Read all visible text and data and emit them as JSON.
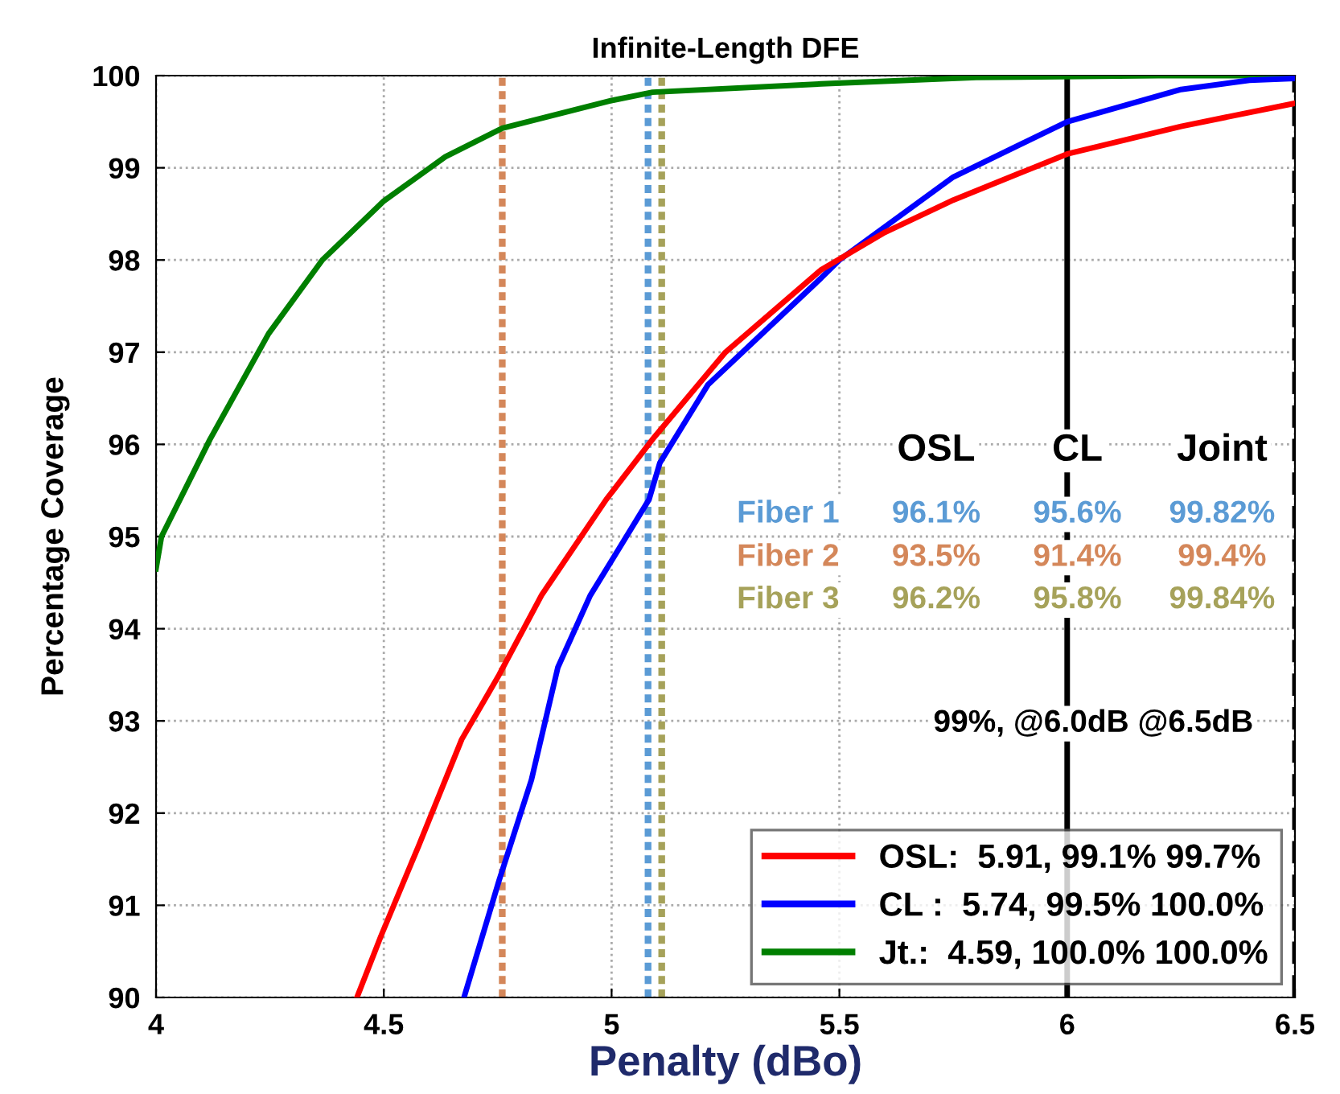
{
  "chart_data": {
    "type": "line",
    "title": "Infinite-Length DFE",
    "xlabel": "Penalty (dBo)",
    "ylabel": "Percentage Coverage",
    "xlim": [
      4,
      6.5
    ],
    "xticks": [
      4,
      4.5,
      5,
      5.5,
      6,
      6.5
    ],
    "ylim": [
      90,
      100
    ],
    "yticks": [
      90,
      91,
      92,
      93,
      94,
      95,
      96,
      97,
      98,
      99,
      100
    ],
    "grid": true,
    "legend": "bottom right",
    "line_style": "solid",
    "marker": "none",
    "series": [
      {
        "name": "OSL:  5.91, 99.1% 99.7%",
        "color": "#ff0000",
        "x": [
          4.441,
          4.494,
          4.576,
          4.671,
          4.753,
          4.847,
          4.988,
          5.094,
          5.25,
          5.459,
          5.6,
          5.75,
          5.9,
          6.0,
          6.25,
          6.5
        ],
        "values": [
          90,
          90.67,
          91.64,
          92.8,
          93.5,
          94.37,
          95.4,
          96.08,
          97.0,
          97.89,
          98.3,
          98.65,
          98.95,
          99.15,
          99.45,
          99.7
        ]
      },
      {
        "name": "CL :  5.74, 99.5% 100.0%",
        "color": "#0000ff",
        "x": [
          4.676,
          4.753,
          4.824,
          4.882,
          4.953,
          5.082,
          5.106,
          5.212,
          5.459,
          5.5,
          5.75,
          6.0,
          6.25,
          6.4,
          6.5
        ],
        "values": [
          90,
          91.27,
          92.36,
          93.58,
          94.36,
          95.4,
          95.8,
          96.65,
          97.8,
          98.0,
          98.9,
          99.5,
          99.85,
          99.95,
          99.97
        ]
      },
      {
        "name": "Jt.:  4.59, 100.0% 100.0%",
        "color": "#007f00",
        "x": [
          4.0,
          4.012,
          4.118,
          4.247,
          4.365,
          4.5,
          4.635,
          4.76,
          5.0,
          5.09,
          5.46,
          5.8,
          6.2,
          6.5
        ],
        "values": [
          94.65,
          95.0,
          96.05,
          97.2,
          98.0,
          98.64,
          99.12,
          99.43,
          99.73,
          99.82,
          99.91,
          99.98,
          100.0,
          100.0
        ]
      }
    ],
    "ref_lines": [
      {
        "axis": "x",
        "value": 5.08,
        "color": "#5b9bd5",
        "line_style": "dotted"
      },
      {
        "axis": "x",
        "value": 4.76,
        "color": "#d4875a",
        "line_style": "dotted"
      },
      {
        "axis": "x",
        "value": 5.11,
        "color": "#a6a25a",
        "line_style": "dotted"
      },
      {
        "axis": "x",
        "value": 6.0,
        "color": "#000000",
        "line_style": "solid"
      },
      {
        "axis": "x",
        "value": 6.5,
        "color": "#000000",
        "line_style": "dashed"
      }
    ],
    "annotations": [
      "OSL",
      "CL",
      "Joint",
      "Fiber 1",
      "96.1%",
      "95.6%",
      "99.82%",
      "Fiber 2",
      "93.5%",
      "91.4%",
      "99.4%",
      "Fiber 3",
      "96.2%",
      "95.8%",
      "99.84%",
      "99%, @6.0dB @6.5dB"
    ]
  }
}
